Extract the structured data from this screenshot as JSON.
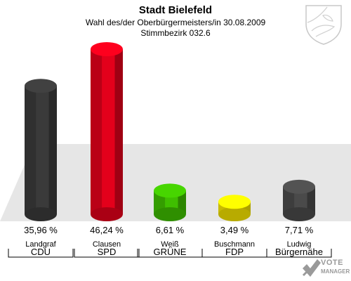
{
  "header": {
    "title": "Stadt Bielefeld",
    "subtitle1": "Wahl des/der Oberbürgermeisters/in 30.08.2009",
    "subtitle2": "Stimmbezirk 032.6"
  },
  "logo": {
    "line1": "VOTE",
    "line2": "MANAGER",
    "icon": "vote-check-icon"
  },
  "crest": {
    "icon": "coat-of-arms-icon"
  },
  "chart_data": {
    "type": "bar",
    "title": "Stadt Bielefeld",
    "ylim": [
      0,
      50
    ],
    "categories": [
      "Landgraf",
      "Clausen",
      "Weiß",
      "Buschmann",
      "Ludwig"
    ],
    "parties": [
      "CDU",
      "SPD",
      "GRÜNE",
      "FDP",
      "Bürgernähe"
    ],
    "values": [
      35.96,
      46.24,
      6.61,
      3.49,
      7.71
    ],
    "value_labels": [
      "35,96 %",
      "46,24 %",
      "6,61 %",
      "3,49 %",
      "7,71 %"
    ],
    "colors": [
      "#3a3a3a",
      "#e3001b",
      "#3fbf00",
      "#f5e400",
      "#4a4a4a"
    ]
  }
}
